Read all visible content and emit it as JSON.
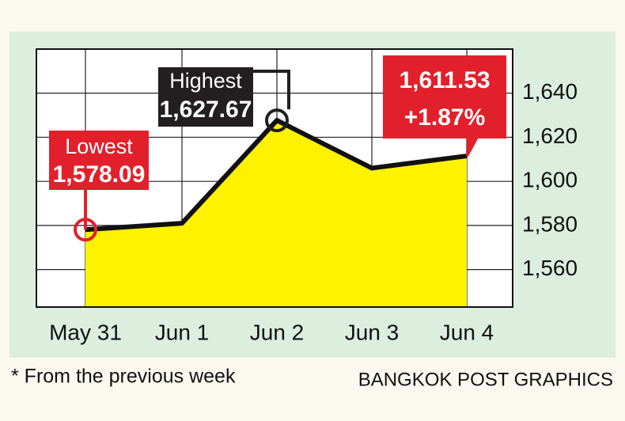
{
  "chart_data": {
    "type": "line",
    "categories": [
      "May 31",
      "Jun 1",
      "Jun 2",
      "Jun 3",
      "Jun 4"
    ],
    "values": [
      1578.09,
      1581,
      1627.67,
      1606,
      1611.53
    ],
    "color": "#111111",
    "fill": "#fff200",
    "ylim": [
      1543,
      1660
    ],
    "yticks": [
      {
        "value": 1560,
        "label": "1,560"
      },
      {
        "value": 1580,
        "label": "1,580"
      },
      {
        "value": 1600,
        "label": "1,600"
      },
      {
        "value": 1620,
        "label": "1,620"
      },
      {
        "value": 1640,
        "label": "1,640"
      }
    ],
    "grid": true,
    "annotations": [
      {
        "index": 0,
        "lines": [
          "Lowest",
          "1,578.09"
        ],
        "color": "#e2202c"
      },
      {
        "index": 2,
        "lines": [
          "Highest",
          "1,627.67"
        ],
        "color": "#231f20"
      },
      {
        "index": 4,
        "lines": [
          "1,611.53",
          "+1.87%"
        ],
        "color": "#e2202c"
      }
    ],
    "footnote": "* From the previous week",
    "source": "BANGKOK POST GRAPHICS"
  }
}
